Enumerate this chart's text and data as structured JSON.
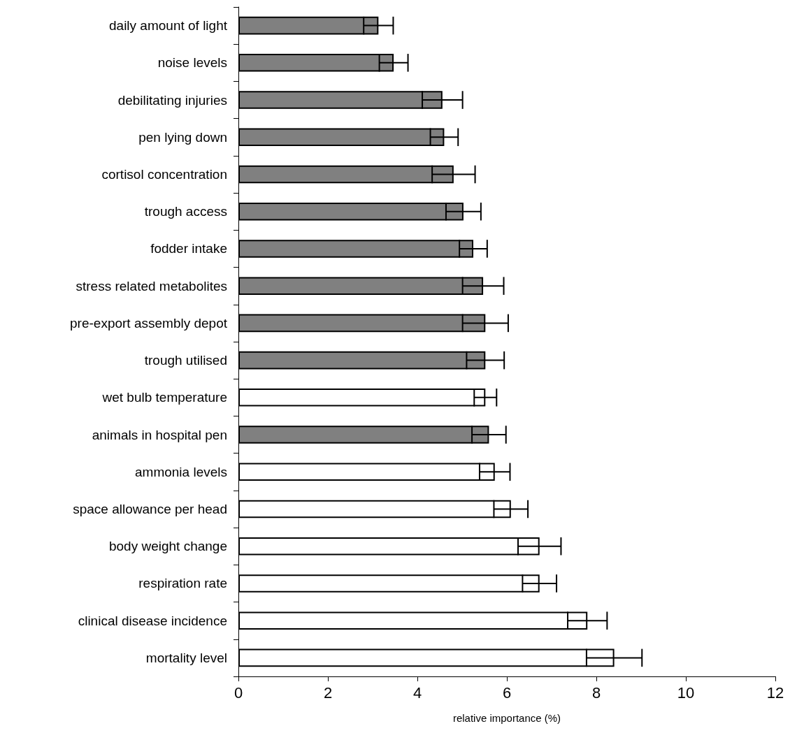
{
  "chart_data": {
    "type": "bar",
    "orientation": "horizontal",
    "xlabel": "relative importance (%)",
    "categories": [
      "daily amount of light",
      "noise levels",
      "debilitating injuries",
      "pen lying down",
      "cortisol concentration",
      "trough access",
      "fodder intake",
      "stress related metabolites",
      "pre-export assembly depot",
      "trough utilised",
      "wet bulb temperature",
      "animals in hospital pen",
      "ammonia levels",
      "space allowance per head",
      "body weight change",
      "respiration rate",
      "clinical disease incidence",
      "mortality level"
    ],
    "values": [
      3.13,
      3.47,
      4.56,
      4.6,
      4.81,
      5.03,
      5.25,
      5.47,
      5.52,
      5.52,
      5.52,
      5.6,
      5.73,
      6.09,
      6.73,
      6.73,
      7.8,
      8.4
    ],
    "errors": [
      0.33,
      0.32,
      0.45,
      0.31,
      0.48,
      0.39,
      0.31,
      0.46,
      0.51,
      0.42,
      0.25,
      0.38,
      0.34,
      0.38,
      0.48,
      0.38,
      0.44,
      0.62
    ],
    "colors": [
      "#808080",
      "#808080",
      "#808080",
      "#808080",
      "#808080",
      "#808080",
      "#808080",
      "#808080",
      "#808080",
      "#808080",
      "#ffffff",
      "#808080",
      "#ffffff",
      "#ffffff",
      "#ffffff",
      "#ffffff",
      "#ffffff",
      "#ffffff"
    ],
    "xlim": [
      0,
      12
    ],
    "xticks": [
      0,
      2,
      4,
      6,
      8,
      10,
      12
    ],
    "grid": false
  }
}
